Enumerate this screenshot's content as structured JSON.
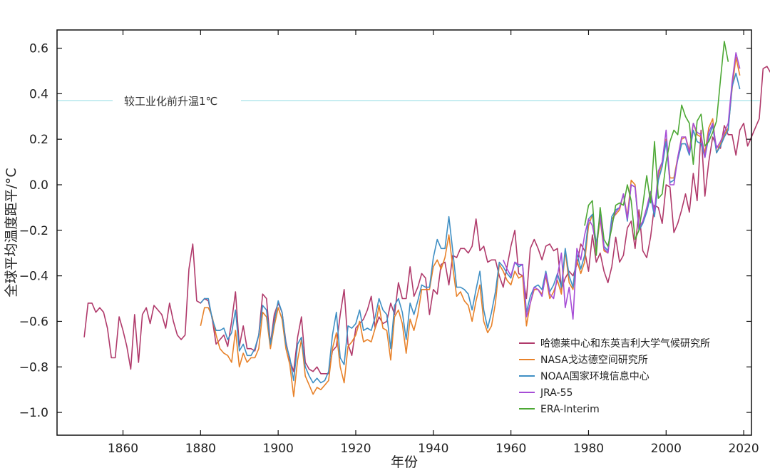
{
  "chart_data": {
    "type": "line",
    "title": "",
    "xlabel": "年份",
    "ylabel": "全球平均温度距平/°C",
    "xlim": [
      1843,
      2022
    ],
    "ylim": [
      -1.1,
      0.68
    ],
    "xticks": [
      1860,
      1880,
      1900,
      1920,
      1940,
      1960,
      1980,
      2000,
      2020
    ],
    "xtick_labels": [
      "1860",
      "1880",
      "1900",
      "1920",
      "1940",
      "1960",
      "1980",
      "2000",
      "2020"
    ],
    "yticks": [
      -1.0,
      -0.8,
      -0.6,
      -0.4,
      -0.2,
      0.0,
      0.2,
      0.4,
      0.6
    ],
    "ytick_labels": [
      "−1.0",
      "−0.8",
      "−0.6",
      "−0.4",
      "−0.2",
      "0.0",
      "0.2",
      "0.4",
      "0.6"
    ],
    "grid": false,
    "legend_position": "bottom-right",
    "reference_line": {
      "y": 0.37,
      "label": "较工业化前升温1℃",
      "color": "#9fe0e6"
    },
    "series": [
      {
        "name": "哈德莱中心和东英吉利大学气候研究所",
        "color": "#b03a6b",
        "start_year": 1850,
        "values": [
          -0.67,
          -0.52,
          -0.52,
          -0.56,
          -0.54,
          -0.56,
          -0.63,
          -0.76,
          -0.76,
          -0.58,
          -0.64,
          -0.71,
          -0.81,
          -0.57,
          -0.78,
          -0.57,
          -0.54,
          -0.61,
          -0.53,
          -0.55,
          -0.57,
          -0.63,
          -0.52,
          -0.6,
          -0.66,
          -0.68,
          -0.66,
          -0.37,
          -0.26,
          -0.51,
          -0.52,
          -0.5,
          -0.51,
          -0.59,
          -0.7,
          -0.68,
          -0.66,
          -0.71,
          -0.6,
          -0.47,
          -0.71,
          -0.62,
          -0.72,
          -0.72,
          -0.73,
          -0.66,
          -0.48,
          -0.5,
          -0.7,
          -0.57,
          -0.52,
          -0.56,
          -0.69,
          -0.77,
          -0.82,
          -0.67,
          -0.58,
          -0.78,
          -0.81,
          -0.82,
          -0.8,
          -0.83,
          -0.83,
          -0.83,
          -0.73,
          -0.71,
          -0.57,
          -0.46,
          -0.7,
          -0.75,
          -0.63,
          -0.61,
          -0.59,
          -0.55,
          -0.49,
          -0.63,
          -0.58,
          -0.61,
          -0.6,
          -0.52,
          -0.57,
          -0.43,
          -0.5,
          -0.5,
          -0.36,
          -0.49,
          -0.45,
          -0.39,
          -0.41,
          -0.57,
          -0.46,
          -0.48,
          -0.35,
          -0.34,
          -0.44,
          -0.31,
          -0.32,
          -0.28,
          -0.28,
          -0.3,
          -0.27,
          -0.15,
          -0.29,
          -0.27,
          -0.34,
          -0.33,
          -0.33,
          -0.4,
          -0.45,
          -0.36,
          -0.27,
          -0.2,
          -0.39,
          -0.4,
          -0.5,
          -0.28,
          -0.24,
          -0.28,
          -0.33,
          -0.27,
          -0.26,
          -0.29,
          -0.28,
          -0.46,
          -0.41,
          -0.38,
          -0.4,
          -0.35,
          -0.26,
          -0.29,
          -0.38,
          -0.22,
          -0.34,
          -0.3,
          -0.38,
          -0.43,
          -0.36,
          -0.23,
          -0.34,
          -0.31,
          -0.19,
          -0.16,
          -0.28,
          -0.11,
          -0.29,
          -0.32,
          -0.23,
          -0.09,
          -0.1,
          -0.17,
          0.0,
          -0.01,
          -0.21,
          -0.17,
          -0.11,
          -0.04,
          -0.12,
          0.05,
          -0.07,
          0.24,
          -0.05,
          0.1,
          0.21,
          0.17,
          0.16,
          0.26,
          0.22,
          0.22,
          0.13,
          0.24,
          0.27,
          0.17,
          0.21,
          0.25,
          0.29,
          0.51,
          0.52,
          0.49
        ]
      },
      {
        "name": "NASA戈达德空间研究所",
        "color": "#e8822a",
        "start_year": 1880,
        "values": [
          -0.62,
          -0.54,
          -0.54,
          -0.58,
          -0.66,
          -0.72,
          -0.74,
          -0.75,
          -0.78,
          -0.64,
          -0.8,
          -0.74,
          -0.78,
          -0.76,
          -0.76,
          -0.72,
          -0.56,
          -0.58,
          -0.72,
          -0.62,
          -0.54,
          -0.59,
          -0.72,
          -0.79,
          -0.93,
          -0.77,
          -0.68,
          -0.84,
          -0.88,
          -0.92,
          -0.89,
          -0.9,
          -0.88,
          -0.86,
          -0.72,
          -0.65,
          -0.8,
          -0.87,
          -0.71,
          -0.69,
          -0.66,
          -0.6,
          -0.69,
          -0.68,
          -0.69,
          -0.63,
          -0.53,
          -0.63,
          -0.64,
          -0.77,
          -0.58,
          -0.55,
          -0.61,
          -0.74,
          -0.59,
          -0.64,
          -0.57,
          -0.46,
          -0.46,
          -0.46,
          -0.36,
          -0.33,
          -0.37,
          -0.32,
          -0.22,
          -0.36,
          -0.49,
          -0.47,
          -0.51,
          -0.53,
          -0.6,
          -0.51,
          -0.44,
          -0.6,
          -0.65,
          -0.62,
          -0.52,
          -0.35,
          -0.38,
          -0.42,
          -0.44,
          -0.38,
          -0.41,
          -0.4,
          -0.62,
          -0.52,
          -0.46,
          -0.46,
          -0.48,
          -0.4,
          -0.5,
          -0.47,
          -0.42,
          -0.48,
          -0.29,
          -0.43,
          -0.46,
          -0.33,
          -0.39,
          -0.34,
          -0.18,
          -0.13,
          -0.28,
          -0.15,
          -0.29,
          -0.3,
          -0.15,
          -0.13,
          -0.11,
          -0.04,
          -0.14,
          0.02,
          0.0,
          -0.19,
          -0.16,
          -0.12,
          -0.04,
          -0.13,
          0.04,
          0.1,
          0.2,
          0.03,
          0.03,
          0.12,
          0.2,
          0.21,
          0.15,
          0.27,
          0.22,
          0.21,
          0.14,
          0.25,
          0.29,
          0.14,
          0.18,
          0.22,
          0.25,
          0.42,
          0.56,
          0.48
        ]
      },
      {
        "name": "NOAA国家环境信息中心",
        "color": "#3f8fc4",
        "start_year": 1880,
        "values": [
          -0.52,
          -0.5,
          -0.5,
          -0.59,
          -0.64,
          -0.64,
          -0.63,
          -0.68,
          -0.65,
          -0.55,
          -0.73,
          -0.7,
          -0.75,
          -0.75,
          -0.72,
          -0.66,
          -0.53,
          -0.55,
          -0.7,
          -0.6,
          -0.51,
          -0.56,
          -0.7,
          -0.76,
          -0.86,
          -0.7,
          -0.67,
          -0.8,
          -0.84,
          -0.87,
          -0.85,
          -0.87,
          -0.86,
          -0.82,
          -0.66,
          -0.56,
          -0.76,
          -0.79,
          -0.62,
          -0.63,
          -0.61,
          -0.55,
          -0.64,
          -0.63,
          -0.64,
          -0.58,
          -0.5,
          -0.55,
          -0.57,
          -0.72,
          -0.53,
          -0.5,
          -0.56,
          -0.68,
          -0.52,
          -0.57,
          -0.51,
          -0.44,
          -0.45,
          -0.45,
          -0.32,
          -0.24,
          -0.28,
          -0.28,
          -0.14,
          -0.29,
          -0.45,
          -0.45,
          -0.46,
          -0.48,
          -0.55,
          -0.46,
          -0.38,
          -0.55,
          -0.63,
          -0.56,
          -0.47,
          -0.34,
          -0.36,
          -0.39,
          -0.41,
          -0.34,
          -0.36,
          -0.35,
          -0.56,
          -0.49,
          -0.45,
          -0.44,
          -0.46,
          -0.38,
          -0.47,
          -0.44,
          -0.39,
          -0.45,
          -0.28,
          -0.4,
          -0.45,
          -0.3,
          -0.37,
          -0.31,
          -0.15,
          -0.13,
          -0.26,
          -0.13,
          -0.27,
          -0.29,
          -0.14,
          -0.11,
          -0.1,
          -0.04,
          -0.16,
          0.0,
          -0.01,
          -0.2,
          -0.17,
          -0.12,
          -0.05,
          -0.14,
          0.02,
          0.08,
          0.19,
          0.01,
          0.02,
          0.11,
          0.18,
          0.18,
          0.13,
          0.24,
          0.19,
          0.18,
          0.12,
          0.21,
          0.26,
          0.14,
          0.17,
          0.21,
          0.24,
          0.43,
          0.49,
          0.42
        ]
      },
      {
        "name": "JRA-55",
        "color": "#a64dd6",
        "start_year": 1958,
        "values": [
          -0.33,
          -0.37,
          -0.4,
          -0.34,
          -0.35,
          -0.35,
          -0.58,
          -0.52,
          -0.45,
          -0.46,
          -0.49,
          -0.39,
          -0.48,
          -0.5,
          -0.4,
          -0.3,
          -0.54,
          -0.45,
          -0.59,
          -0.28,
          -0.33,
          -0.22,
          -0.15,
          -0.18,
          -0.27,
          -0.14,
          -0.28,
          -0.3,
          -0.17,
          -0.12,
          -0.1,
          -0.04,
          -0.15,
          0.0,
          -0.01,
          -0.19,
          -0.16,
          -0.1,
          -0.03,
          -0.12,
          0.06,
          0.1,
          0.24,
          0.0,
          0.0,
          0.12,
          0.21,
          0.21,
          0.14,
          0.27,
          0.23,
          0.22,
          0.12,
          0.23,
          0.27,
          0.16,
          0.19,
          0.23,
          0.27,
          0.45,
          0.58,
          0.51
        ]
      },
      {
        "name": "ERA-Interim",
        "color": "#4ca834",
        "start_year": 1979,
        "values": [
          -0.18,
          -0.09,
          -0.07,
          -0.31,
          -0.1,
          -0.24,
          -0.27,
          -0.19,
          -0.09,
          -0.08,
          -0.09,
          0.0,
          -0.07,
          -0.24,
          -0.2,
          -0.09,
          0.04,
          -0.08,
          0.19,
          -0.06,
          -0.04,
          0.1,
          0.19,
          0.24,
          0.22,
          0.35,
          0.3,
          0.27,
          0.09,
          0.28,
          0.31,
          0.17,
          0.19,
          0.23,
          0.28,
          0.46,
          0.63,
          0.54
        ]
      }
    ]
  },
  "colors": {
    "axis": "#111111",
    "background": "#ffffff"
  }
}
